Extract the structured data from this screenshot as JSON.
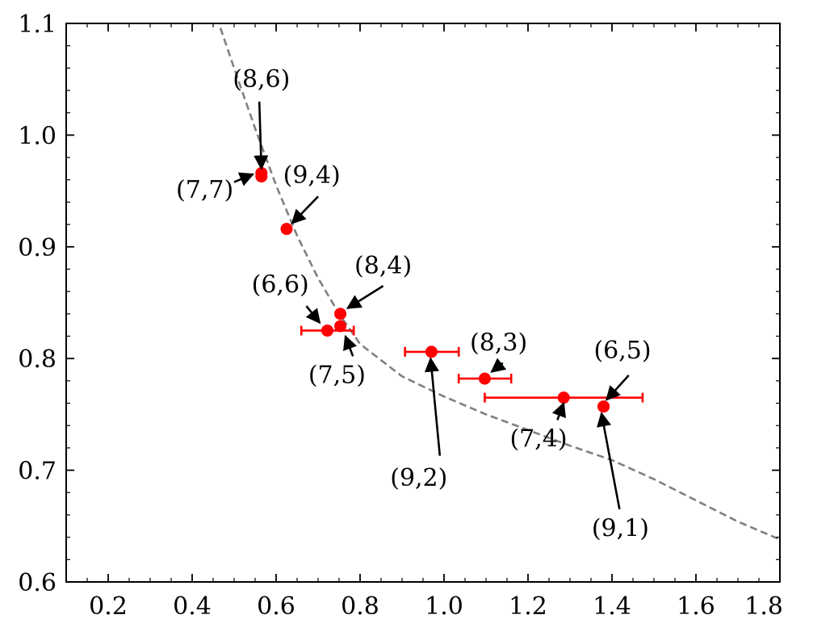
{
  "chart_data": {
    "type": "scatter",
    "title": "",
    "xlabel": "",
    "ylabel": "",
    "xlim": [
      0.1,
      1.8
    ],
    "ylim": [
      0.6,
      1.1
    ],
    "grid": false,
    "x_ticks": [
      "0.2",
      "0.4",
      "0.6",
      "0.8",
      "1.0",
      "1.2",
      "1.4",
      "1.6",
      "1.8"
    ],
    "y_ticks": [
      "0.6",
      "0.7",
      "0.8",
      "0.9",
      "1.0",
      "1.1"
    ],
    "marker_color": "#ff0000",
    "curve_color": "#808080",
    "points": [
      {
        "label": "(8,6)",
        "x": 0.565,
        "y": 0.966,
        "xerr": null
      },
      {
        "label": "(7,7)",
        "x": 0.565,
        "y": 0.963,
        "xerr": null
      },
      {
        "label": "(9,4)",
        "x": 0.625,
        "y": 0.916,
        "xerr": null
      },
      {
        "label": "(8,4)",
        "x": 0.753,
        "y": 0.84,
        "xerr": null
      },
      {
        "label": "(7,5)",
        "x": 0.753,
        "y": 0.829,
        "xerr": null
      },
      {
        "label": "(6,6)",
        "x": 0.722,
        "y": 0.825,
        "xerr": [
          0.66,
          0.785
        ]
      },
      {
        "label": "(9,2)",
        "x": 0.97,
        "y": 0.806,
        "xerr": [
          0.907,
          1.035
        ]
      },
      {
        "label": "(8,3)",
        "x": 1.097,
        "y": 0.782,
        "xerr": [
          1.035,
          1.16
        ]
      },
      {
        "label": "(7,4)",
        "x": 1.285,
        "y": 0.765,
        "xerr": [
          1.097,
          1.473
        ]
      },
      {
        "label": "(6,5)",
        "x": 1.38,
        "y": 0.757,
        "xerr": null
      },
      {
        "label": "(9,1)",
        "x": 1.38,
        "y": 0.757,
        "xerr": null
      }
    ],
    "reference_curve": {
      "style": "dashed",
      "points": [
        [
          0.45,
          1.115
        ],
        [
          0.5,
          1.06
        ],
        [
          0.55,
          1.006
        ],
        [
          0.6,
          0.955
        ],
        [
          0.65,
          0.91
        ],
        [
          0.7,
          0.872
        ],
        [
          0.75,
          0.84
        ],
        [
          0.8,
          0.813
        ],
        [
          0.9,
          0.784
        ],
        [
          1.0,
          0.766
        ],
        [
          1.1,
          0.75
        ],
        [
          1.2,
          0.736
        ],
        [
          1.3,
          0.722
        ],
        [
          1.4,
          0.709
        ],
        [
          1.5,
          0.692
        ],
        [
          1.6,
          0.673
        ],
        [
          1.7,
          0.654
        ],
        [
          1.8,
          0.638
        ]
      ]
    },
    "annotations": [
      {
        "text": "(8,6)",
        "text_x": 0.565,
        "text_y": 1.043,
        "arrow_to": [
          0.565,
          0.97
        ],
        "arrow_from": [
          0.56,
          1.03
        ]
      },
      {
        "text": "(7,7)",
        "text_x": 0.43,
        "text_y": 0.944,
        "arrow_to": [
          0.545,
          0.965
        ],
        "arrow_from": [
          0.5,
          0.958
        ]
      },
      {
        "text": "(9,4)",
        "text_x": 0.685,
        "text_y": 0.957,
        "arrow_to": [
          0.638,
          0.921
        ],
        "arrow_from": [
          0.7,
          0.945
        ]
      },
      {
        "text": "(8,4)",
        "text_x": 0.855,
        "text_y": 0.876,
        "arrow_to": [
          0.77,
          0.845
        ],
        "arrow_from": [
          0.855,
          0.865
        ]
      },
      {
        "text": "(6,6)",
        "text_x": 0.61,
        "text_y": 0.859,
        "arrow_to": [
          0.704,
          0.832
        ],
        "arrow_from": [
          0.672,
          0.847
        ]
      },
      {
        "text": "(7,5)",
        "text_x": 0.745,
        "text_y": 0.778,
        "arrow_to": [
          0.765,
          0.82
        ],
        "arrow_from": [
          0.783,
          0.802
        ]
      },
      {
        "text": "(9,2)",
        "text_x": 0.94,
        "text_y": 0.686,
        "arrow_to": [
          0.968,
          0.8
        ],
        "arrow_from": [
          0.99,
          0.713
        ]
      },
      {
        "text": "(8,3)",
        "text_x": 1.13,
        "text_y": 0.807,
        "arrow_to": [
          1.113,
          0.788
        ],
        "arrow_from": [
          1.14,
          0.796
        ]
      },
      {
        "text": "(7,4)",
        "text_x": 1.225,
        "text_y": 0.721,
        "arrow_to": [
          1.285,
          0.76
        ],
        "arrow_from": [
          1.27,
          0.745
        ]
      },
      {
        "text": "(6,5)",
        "text_x": 1.425,
        "text_y": 0.8,
        "arrow_to": [
          1.387,
          0.763
        ],
        "arrow_from": [
          1.44,
          0.785
        ]
      },
      {
        "text": "(9,1)",
        "text_x": 1.42,
        "text_y": 0.641,
        "arrow_to": [
          1.375,
          0.751
        ],
        "arrow_from": [
          1.418,
          0.665
        ]
      }
    ]
  }
}
